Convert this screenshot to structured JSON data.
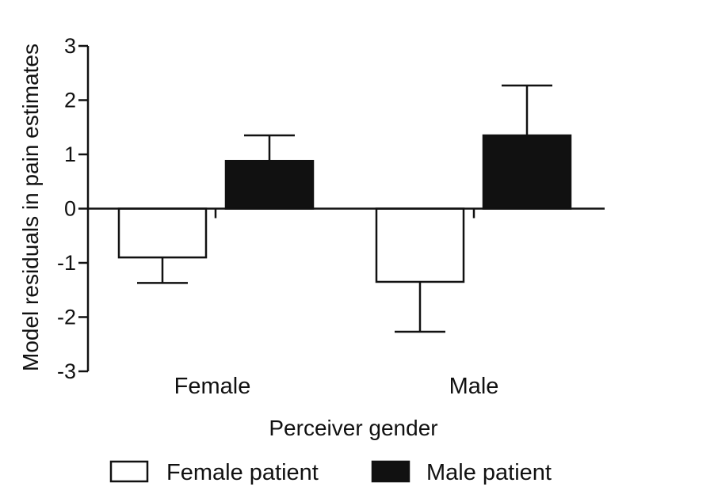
{
  "chart_data": {
    "type": "bar",
    "title": "",
    "xlabel": "Perceiver gender",
    "ylabel": "Model residuals in pain estimates",
    "ylim": [
      -3,
      3
    ],
    "yticks": [
      "3",
      "2",
      "1",
      "0",
      "-1",
      "-2",
      "-3"
    ],
    "categories": [
      "Female",
      "Male"
    ],
    "series": [
      {
        "name": "Female patient",
        "values": [
          -0.9,
          -1.35
        ],
        "errors": [
          0.47,
          0.92
        ],
        "fill": "#ffffff"
      },
      {
        "name": "Male patient",
        "values": [
          0.88,
          1.35
        ],
        "errors": [
          0.47,
          0.92
        ],
        "fill": "#111111"
      }
    ],
    "legend_position": "bottom",
    "grid": false
  },
  "colors": {
    "bar_outline": "#111111",
    "dark_bar": "#111111",
    "light_bar": "#ffffff"
  }
}
